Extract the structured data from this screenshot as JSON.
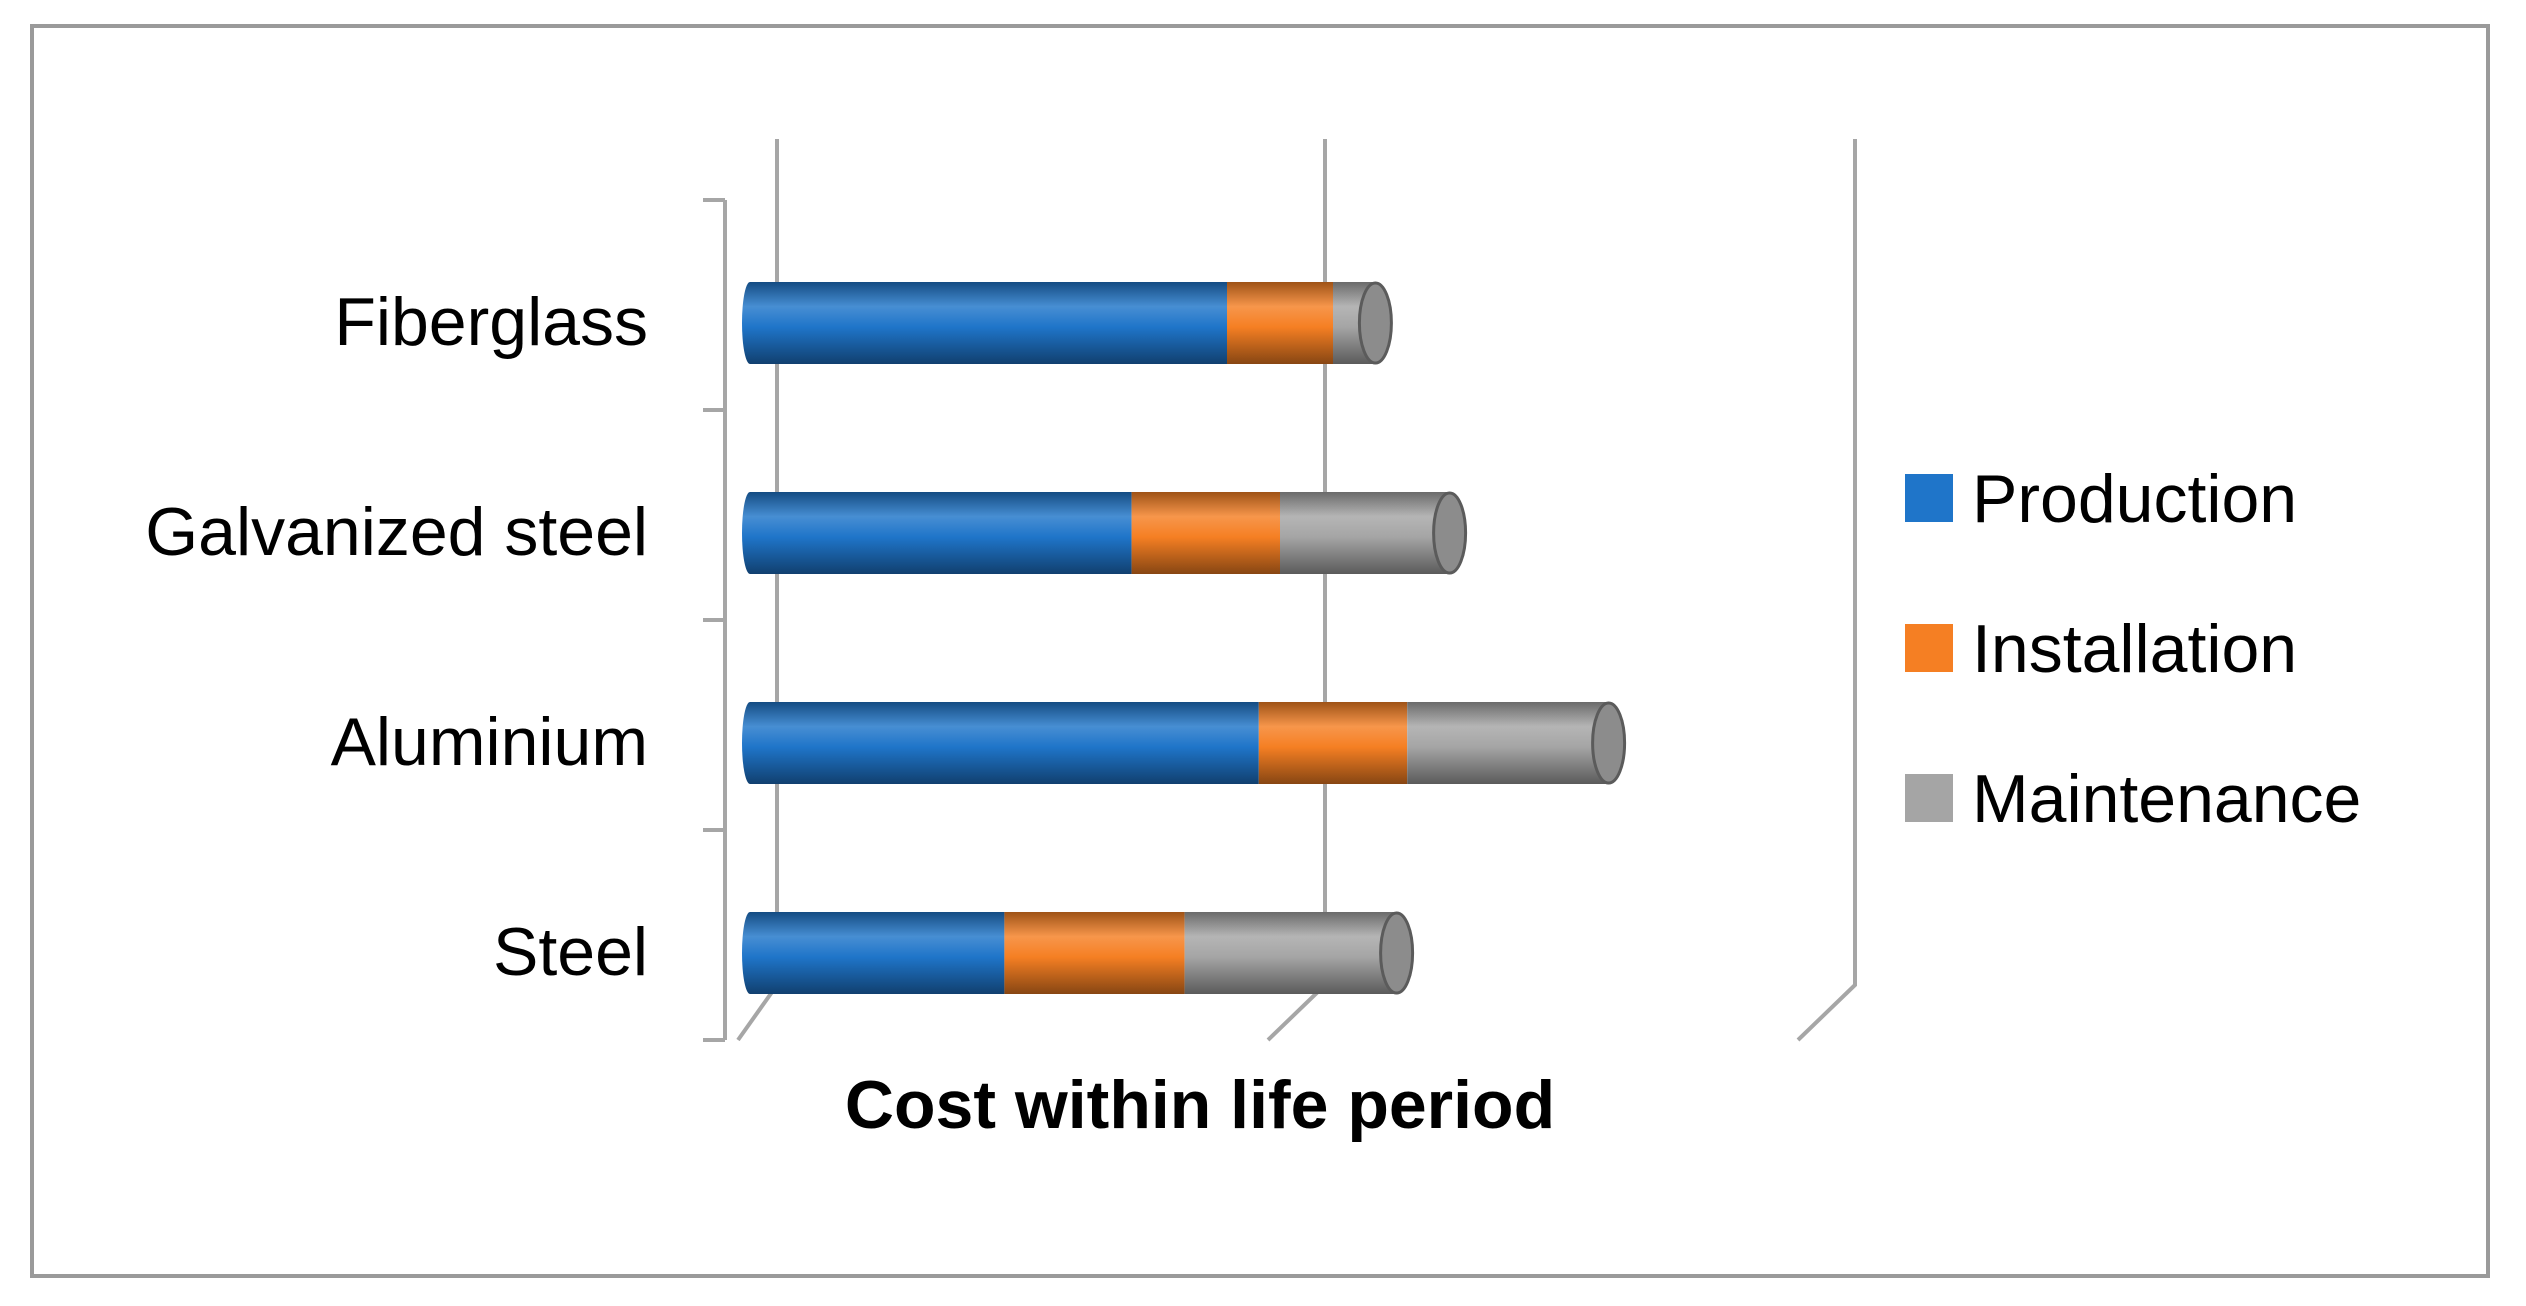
{
  "chart_data": {
    "type": "bar",
    "orientation": "horizontal",
    "stacked": true,
    "style": "3d-cylinder",
    "title": "",
    "xlabel": "Cost within life period",
    "ylabel": "",
    "categories": [
      "Fiberglass",
      "Galvanized steel",
      "Aluminium",
      "Steel"
    ],
    "series": [
      {
        "name": "Production",
        "color": "#1f75c9",
        "values": [
          45,
          36,
          48,
          24
        ]
      },
      {
        "name": "Installation",
        "color": "#f57f23",
        "values": [
          10,
          14,
          14,
          17
        ]
      },
      {
        "name": "Maintenance",
        "color": "#a5a5a5",
        "values": [
          4,
          16,
          19,
          20
        ]
      }
    ],
    "xlim": [
      0,
      100
    ],
    "legend_position": "right",
    "grid": true
  }
}
